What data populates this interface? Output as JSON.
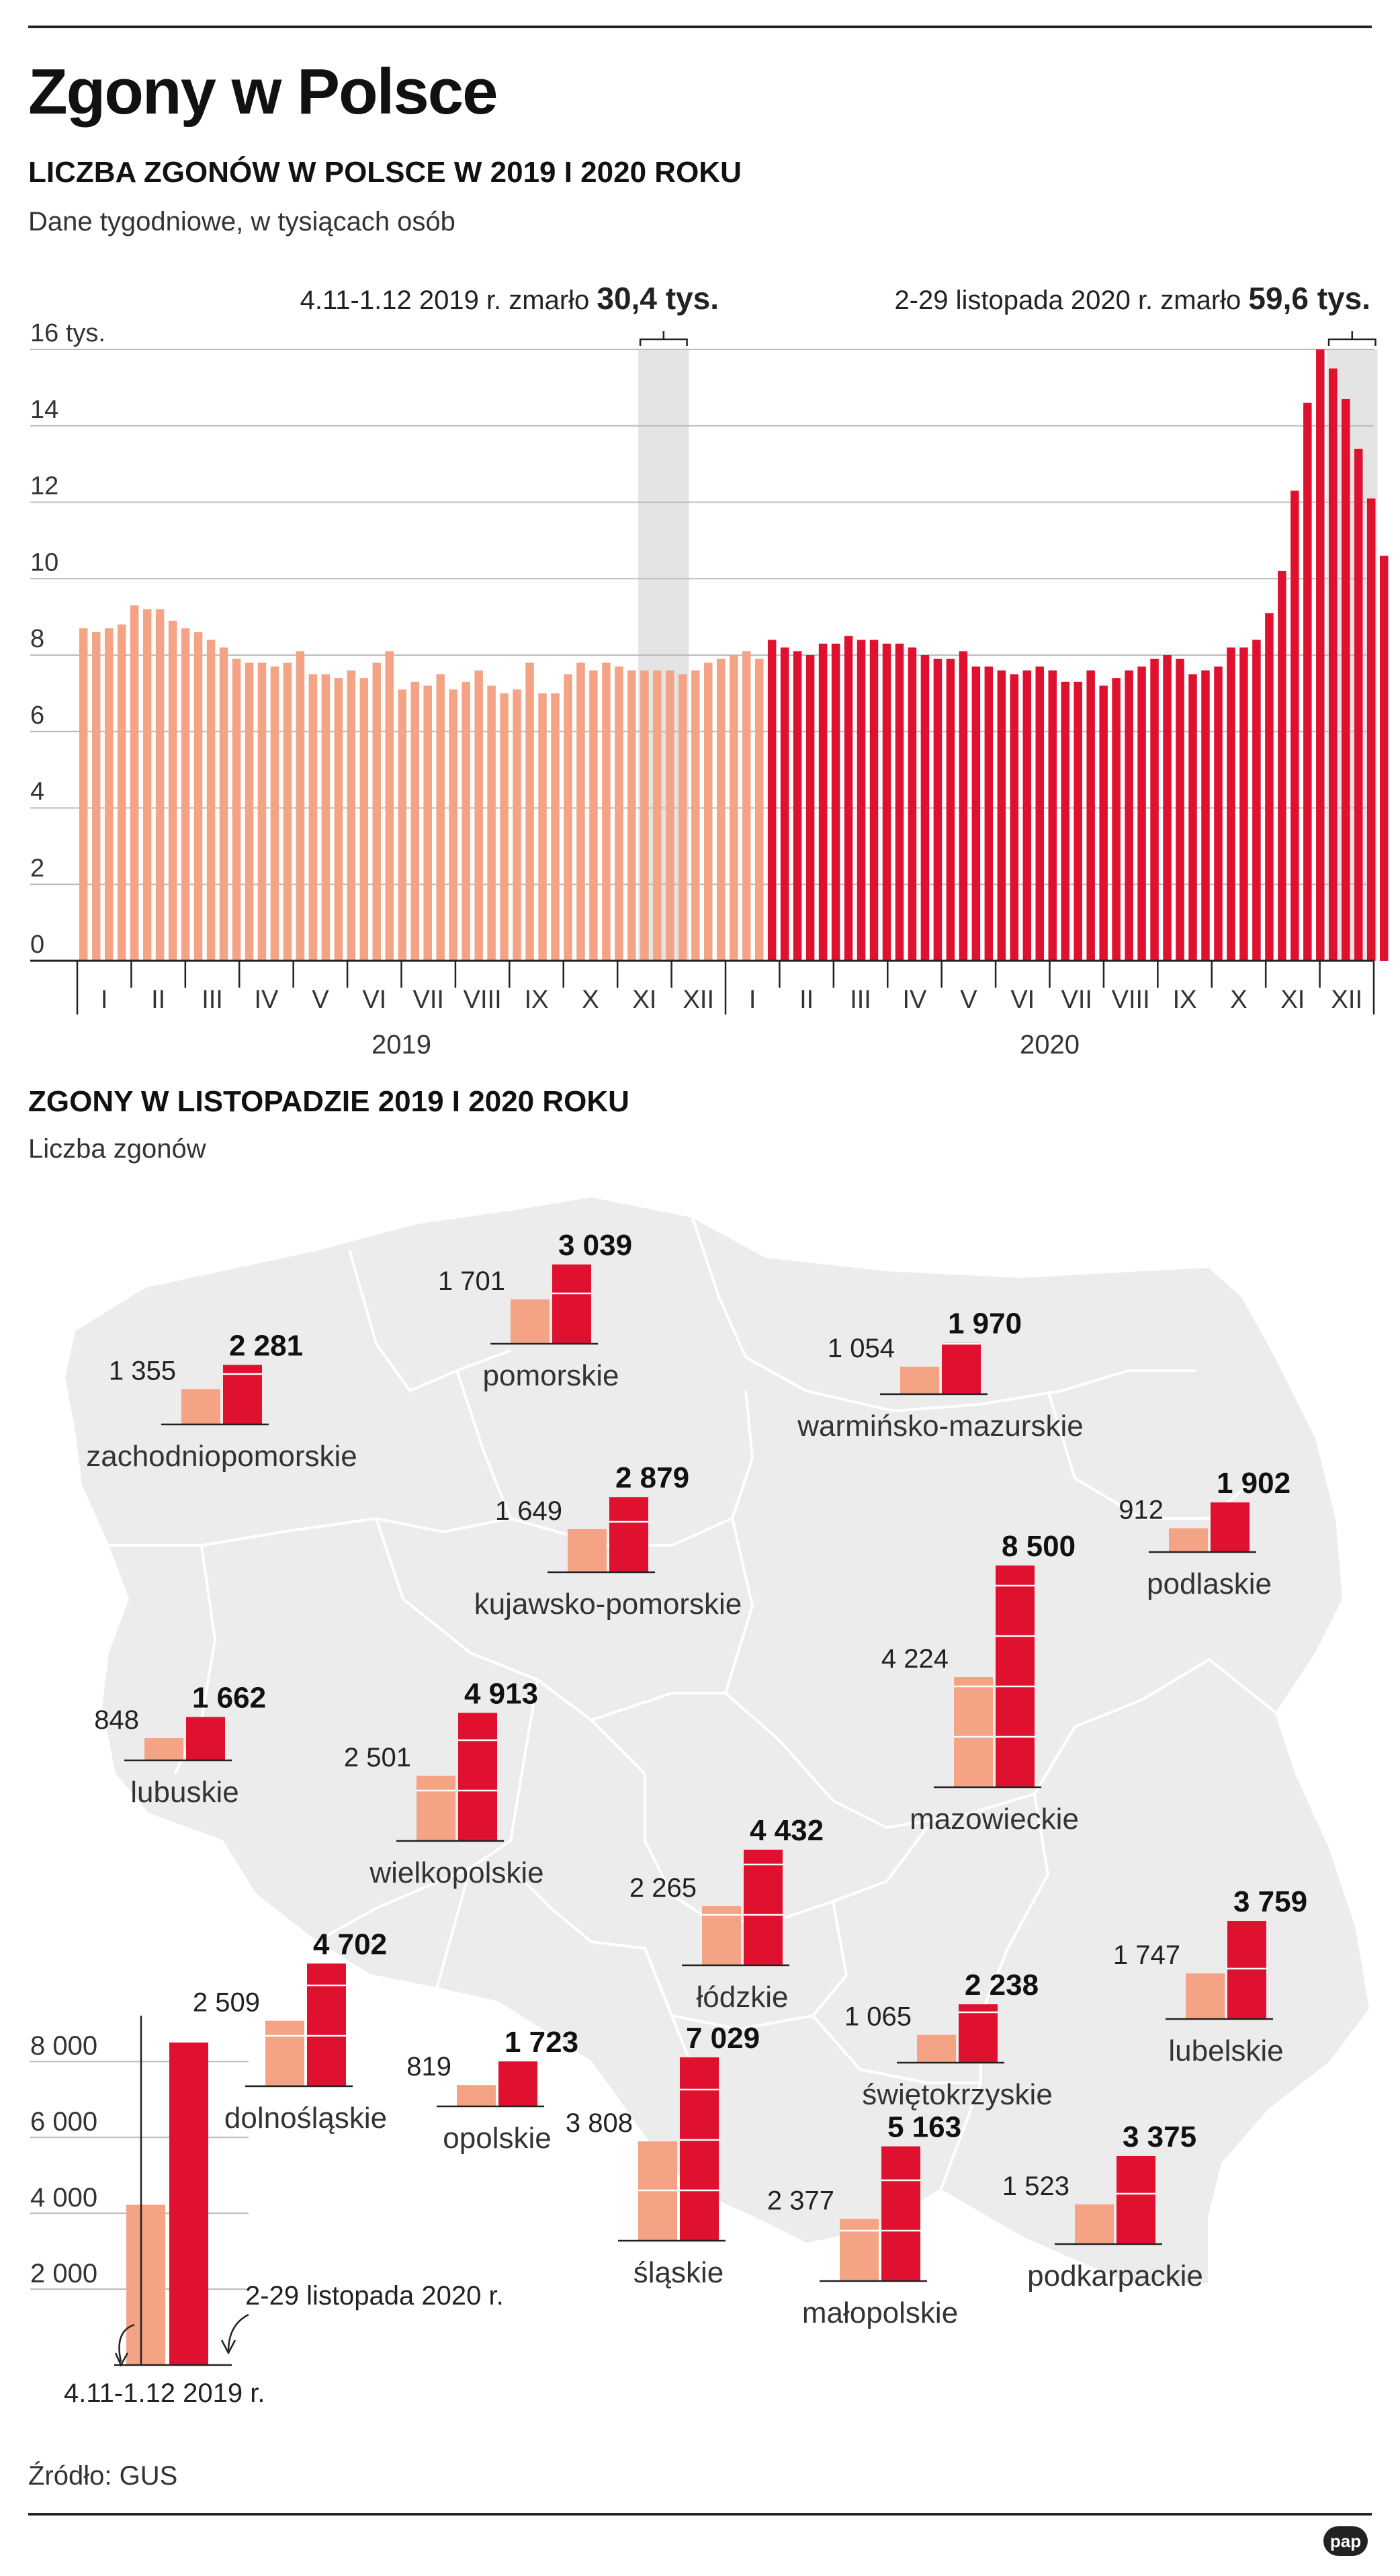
{
  "title": "Zgony w Polsce",
  "weekly": {
    "heading": "LICZBA ZGONÓW W POLSCE W 2019 I 2020 ROKU",
    "subheading": "Dane tygodniowe, w tysiącach osób",
    "annotation_2019": {
      "text": "4.11-1.12 2019 r. zmarło",
      "value": "30,4 tys."
    },
    "annotation_2020": {
      "text": "2-29 listopada 2020 r. zmarło",
      "value": "59,6 tys."
    }
  },
  "regional": {
    "heading": "ZGONY W LISTOPADZIE 2019 I 2020 ROKU",
    "subheading": "Liczba zgonów"
  },
  "source": "Źródło: GUS",
  "logo": "pap",
  "colors": {
    "c2019": "#f4a385",
    "c2020": "#e0102f",
    "map": "#ececec",
    "grid": "#bbbbbb"
  },
  "chart_data": [
    {
      "type": "bar",
      "title": "LICZBA ZGONÓW W POLSCE W 2019 I 2020 ROKU",
      "ylabel": "tys. osób",
      "ylim": [
        0,
        16
      ],
      "yticks": [
        0,
        2,
        4,
        6,
        8,
        10,
        12,
        14,
        16
      ],
      "ytick_labels": [
        "0",
        "2",
        "4",
        "6",
        "8",
        "10",
        "12",
        "14",
        "16 tys."
      ],
      "years": [
        "2019",
        "2020"
      ],
      "months": [
        "I",
        "II",
        "III",
        "IV",
        "V",
        "VI",
        "VII",
        "VIII",
        "IX",
        "X",
        "XI",
        "XII"
      ],
      "series": [
        {
          "name": "2019",
          "values": [
            8.7,
            8.6,
            8.7,
            8.8,
            9.3,
            9.2,
            9.2,
            8.9,
            8.7,
            8.6,
            8.4,
            8.2,
            7.9,
            7.8,
            7.8,
            7.7,
            7.8,
            8.1,
            7.5,
            7.5,
            7.4,
            7.6,
            7.4,
            7.8,
            8.1,
            7.1,
            7.3,
            7.2,
            7.5,
            7.1,
            7.3,
            7.6,
            7.2,
            7.0,
            7.1,
            7.8,
            7.0,
            7.0,
            7.5,
            7.8,
            7.6,
            7.8,
            7.7,
            7.6,
            7.6,
            7.6,
            7.6,
            7.5,
            7.6,
            7.8,
            7.9,
            8.0,
            8.1,
            7.9
          ]
        },
        {
          "name": "2020",
          "values": [
            8.4,
            8.2,
            8.1,
            8.0,
            8.3,
            8.3,
            8.5,
            8.4,
            8.4,
            8.3,
            8.3,
            8.2,
            8.0,
            7.9,
            7.9,
            8.1,
            7.7,
            7.7,
            7.6,
            7.5,
            7.6,
            7.7,
            7.6,
            7.3,
            7.3,
            7.6,
            7.2,
            7.4,
            7.6,
            7.7,
            7.9,
            8.0,
            7.9,
            7.5,
            7.6,
            7.7,
            8.2,
            8.2,
            8.4,
            9.1,
            10.2,
            12.3,
            14.6,
            16.0,
            15.5,
            14.7,
            13.4,
            12.1,
            10.6
          ]
        }
      ],
      "highlight_2019_weeks": [
        45,
        46,
        47,
        48
      ],
      "highlight_2020_weeks": [
        45,
        46,
        47,
        48
      ]
    },
    {
      "type": "bar",
      "title": "ZGONY W LISTOPADZIE 2019 I 2020 ROKU",
      "legend": {
        "c2019": "4.11-1.12 2019 r.",
        "c2020": "2-29 listopada 2020 r."
      },
      "legend_scale": [
        {
          "v": 2000,
          "label": "2 000"
        },
        {
          "v": 4000,
          "label": "4 000"
        },
        {
          "v": 6000,
          "label": "6 000"
        },
        {
          "v": 8000,
          "label": "8 000"
        }
      ],
      "legend_values": [
        4224,
        8500
      ],
      "regions": [
        {
          "name": "pomorskie",
          "v2019": 1701,
          "v2020": 3039,
          "l2019": "1 701",
          "l2020": "3 039"
        },
        {
          "name": "zachodniopomorskie",
          "v2019": 1355,
          "v2020": 2281,
          "l2019": "1 355",
          "l2020": "2 281"
        },
        {
          "name": "warmińsko-mazurskie",
          "v2019": 1054,
          "v2020": 1970,
          "l2019": "1 054",
          "l2020": "1 970"
        },
        {
          "name": "kujawsko-pomorskie",
          "v2019": 1649,
          "v2020": 2879,
          "l2019": "1 649",
          "l2020": "2 879"
        },
        {
          "name": "podlaskie",
          "v2019": 912,
          "v2020": 1902,
          "l2019": "912",
          "l2020": "1 902"
        },
        {
          "name": "mazowieckie",
          "v2019": 4224,
          "v2020": 8500,
          "l2019": "4 224",
          "l2020": "8 500"
        },
        {
          "name": "lubuskie",
          "v2019": 848,
          "v2020": 1662,
          "l2019": "848",
          "l2020": "1 662"
        },
        {
          "name": "wielkopolskie",
          "v2019": 2501,
          "v2020": 4913,
          "l2019": "2 501",
          "l2020": "4 913"
        },
        {
          "name": "łódzkie",
          "v2019": 2265,
          "v2020": 4432,
          "l2019": "2 265",
          "l2020": "4 432"
        },
        {
          "name": "lubelskie",
          "v2019": 1747,
          "v2020": 3759,
          "l2019": "1 747",
          "l2020": "3 759"
        },
        {
          "name": "dolnośląskie",
          "v2019": 2509,
          "v2020": 4702,
          "l2019": "2 509",
          "l2020": "4 702"
        },
        {
          "name": "świętokrzyskie",
          "v2019": 1065,
          "v2020": 2238,
          "l2019": "1 065",
          "l2020": "2 238"
        },
        {
          "name": "opolskie",
          "v2019": 819,
          "v2020": 1723,
          "l2019": "819",
          "l2020": "1 723"
        },
        {
          "name": "śląskie",
          "v2019": 3808,
          "v2020": 7029,
          "l2019": "3 808",
          "l2020": "7 029"
        },
        {
          "name": "małopolskie",
          "v2019": 2377,
          "v2020": 5163,
          "l2019": "2 377",
          "l2020": "5 163"
        },
        {
          "name": "podkarpackie",
          "v2019": 1523,
          "v2020": 3375,
          "l2019": "1 523",
          "l2020": "3 375"
        }
      ]
    }
  ]
}
